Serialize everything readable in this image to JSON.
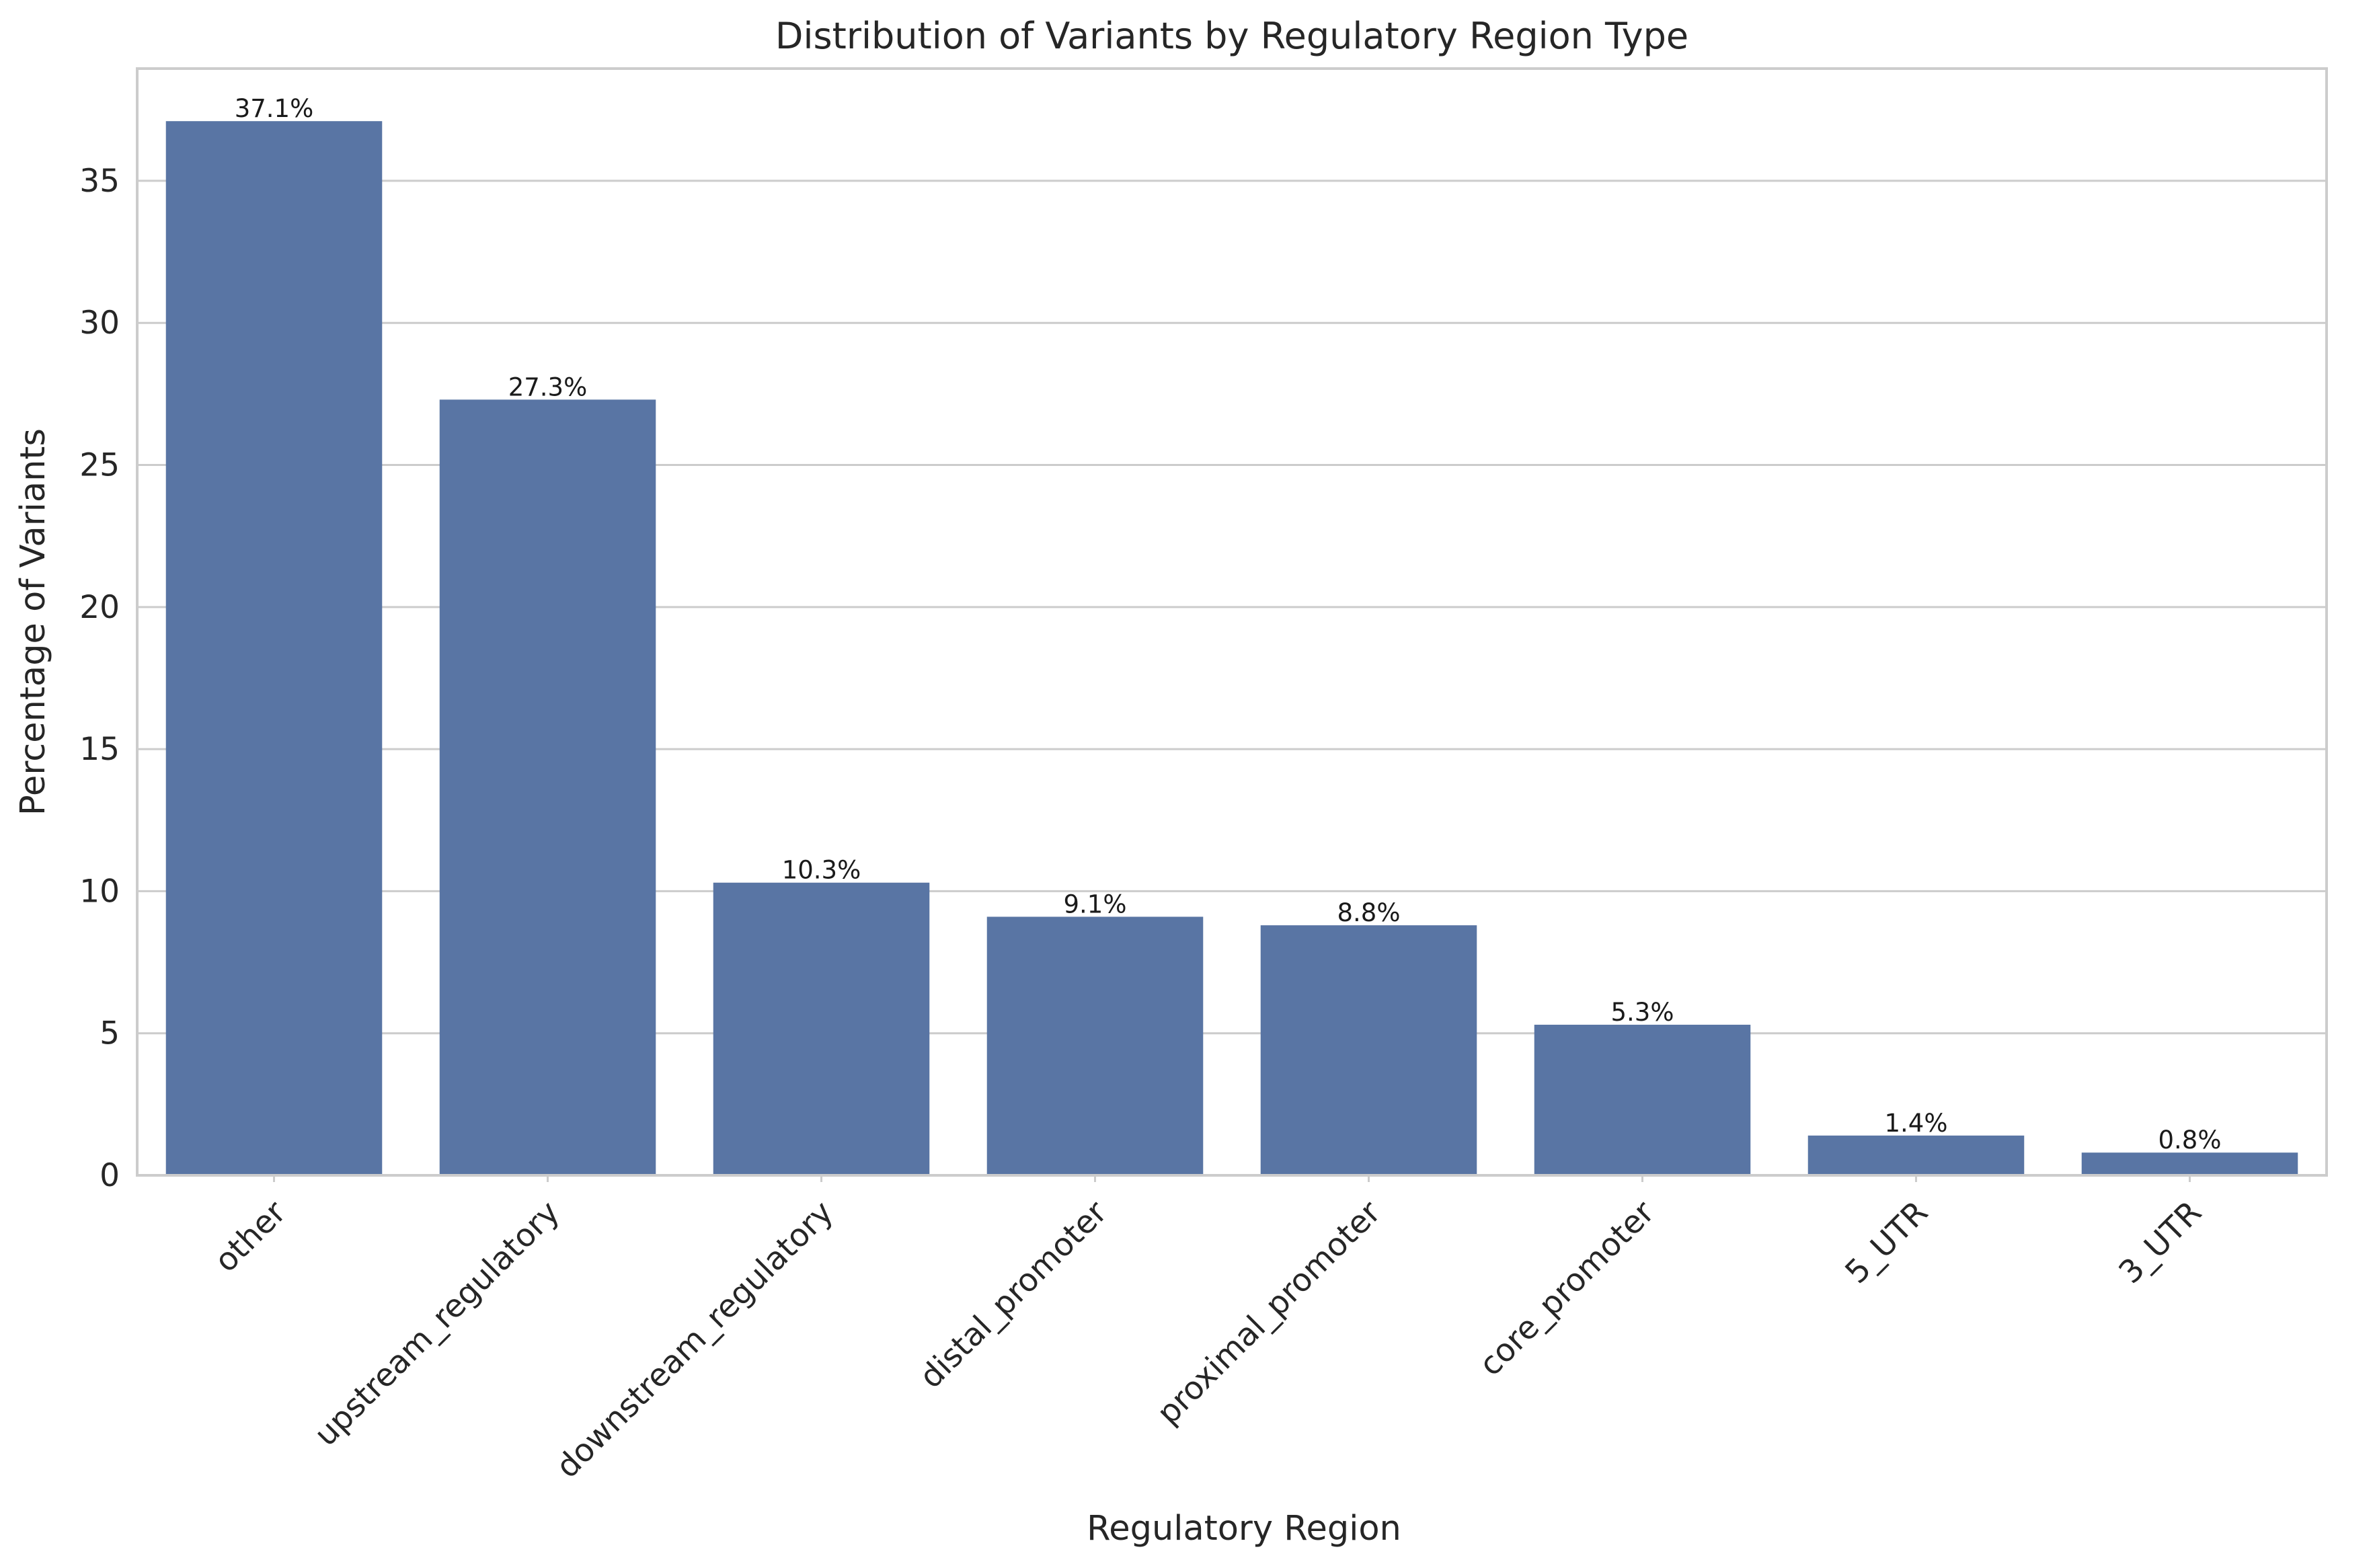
{
  "chart_data": {
    "type": "bar",
    "title": "Distribution of Variants by Regulatory Region Type",
    "xlabel": "Regulatory Region",
    "ylabel": "Percentage of Variants",
    "categories": [
      "other",
      "upstream_regulatory",
      "downstream_regulatory",
      "distal_promoter",
      "proximal_promoter",
      "core_promoter",
      "5_UTR",
      "3_UTR"
    ],
    "values": [
      37.1,
      27.3,
      10.3,
      9.1,
      8.8,
      5.3,
      1.4,
      0.8
    ],
    "data_labels": [
      "37.1%",
      "27.3%",
      "10.3%",
      "9.1%",
      "8.8%",
      "5.3%",
      "1.4%",
      "0.8%"
    ],
    "yticks": [
      0,
      5,
      10,
      15,
      20,
      25,
      30,
      35
    ],
    "ylim": [
      0,
      38.95
    ],
    "grid": true,
    "bar_color": "#5975a4"
  }
}
